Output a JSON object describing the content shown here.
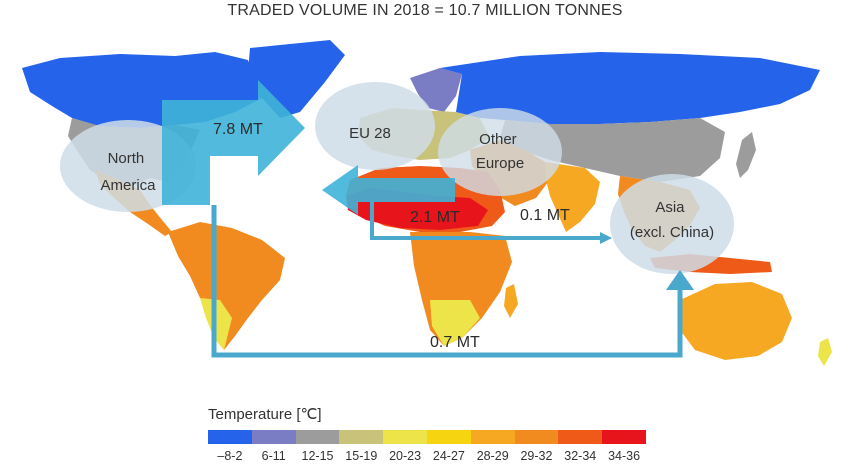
{
  "title": "TRADED VOLUME IN 2018 = 10.7 MILLION  TONNES",
  "regions": {
    "north_america": [
      "North",
      "America"
    ],
    "eu28": [
      "EU 28"
    ],
    "other_europe": [
      "Other",
      "Europe"
    ],
    "asia": [
      "Asia",
      "(excl. China)"
    ]
  },
  "flows": {
    "na_to_eu": "7.8 MT",
    "to_other_europe": "2.1 MT",
    "to_asia_short": "0.1 MT",
    "to_asia_long": "0.7 MT"
  },
  "legend": {
    "title": "Temperature [℃]",
    "bins": [
      {
        "label": "–8-2",
        "color": "#2563eb"
      },
      {
        "label": "6-11",
        "color": "#7a7dc4"
      },
      {
        "label": "12-15",
        "color": "#9c9c9c"
      },
      {
        "label": "15-19",
        "color": "#c9c27a"
      },
      {
        "label": "20-23",
        "color": "#ede44a"
      },
      {
        "label": "24-27",
        "color": "#f6d410"
      },
      {
        "label": "28-29",
        "color": "#f7a823"
      },
      {
        "label": "29-32",
        "color": "#f18a1f"
      },
      {
        "label": "32-34",
        "color": "#ef5a19"
      },
      {
        "label": "34-36",
        "color": "#e8141c"
      }
    ]
  },
  "colors": {
    "arrow_fill": "#3fb3d8",
    "arrow_line": "#4aa8cc",
    "bubble": "#cfdde8"
  }
}
